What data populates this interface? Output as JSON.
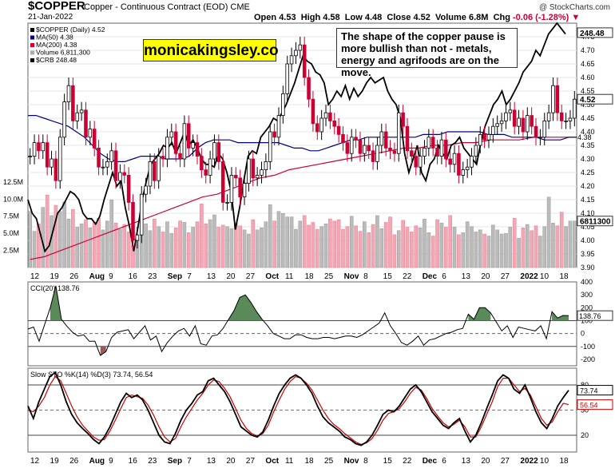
{
  "header": {
    "symbol": "$COPPER",
    "description": "Copper - Continuous Contract (EOD)",
    "exchange": "CME",
    "date": "21-Jan-2022",
    "open_label": "Open",
    "open": "4.53",
    "high_label": "High",
    "high": "4.58",
    "low_label": "Low",
    "low": "4.48",
    "close_label": "Close",
    "close": "4.52",
    "volume_label": "Volume",
    "volume": "6.8M",
    "chg_label": "Chg",
    "chg": "-0.06 (-1.28%)",
    "watermark": "@ StockCharts.com"
  },
  "annotation": "The shape of the copper pause is more bullish than not - metals, energy and agrifoods are on the move.",
  "brand_label": "monicakingsley.co",
  "chart_data": [
    {
      "type": "candlestick",
      "title": "$COPPER (Daily) 4.52",
      "legend": [
        {
          "label": "$COPPER (Daily) 4.52",
          "color": "#000000"
        },
        {
          "label": "MA(50) 4.38",
          "color": "#000080"
        },
        {
          "label": "MA(200) 4.38",
          "color": "#cc0033"
        },
        {
          "label": "Volume 6,811,300",
          "color": "#aaaaaa"
        },
        {
          "label": "$CRB 248.48",
          "color": "#000000"
        }
      ],
      "ylim": [
        3.9,
        4.8
      ],
      "y_ticks": [
        "3.90",
        "3.95",
        "4.00",
        "4.05",
        "4.10",
        "4.15",
        "4.20",
        "4.25",
        "4.30",
        "4.35",
        "4.40",
        "4.45",
        "4.50",
        "4.55",
        "4.60",
        "4.65",
        "4.70",
        "4.75"
      ],
      "volume_ticks": [
        "2.5M",
        "5.0M",
        "7.5M",
        "10.0M",
        "12.5M"
      ],
      "volume_max_m": 12.5,
      "x_labels": [
        "12",
        "19",
        "26",
        "Aug",
        "9",
        "16",
        "23",
        "Sep",
        "7",
        "13",
        "20",
        "27",
        "Oct",
        "11",
        "18",
        "25",
        "Nov",
        "8",
        "15",
        "22",
        "Dec",
        "6",
        "13",
        "20",
        "27",
        "2022",
        "10",
        "18"
      ],
      "bold_labels": [
        "Aug",
        "Sep",
        "Oct",
        "Nov",
        "Dec",
        "2022"
      ],
      "price_close": [
        4.31,
        4.36,
        4.33,
        4.36,
        4.27,
        4.3,
        4.22,
        4.38,
        4.51,
        4.57,
        4.44,
        4.47,
        4.48,
        4.38,
        4.41,
        4.34,
        4.27,
        4.27,
        4.29,
        4.33,
        4.22,
        4.25,
        4.24,
        4.14,
        4.0,
        4.02,
        4.17,
        4.2,
        4.29,
        4.22,
        4.31,
        4.3,
        4.38,
        4.4,
        4.32,
        4.3,
        4.43,
        4.34,
        4.36,
        4.31,
        4.26,
        4.24,
        4.3,
        4.36,
        4.29,
        4.14,
        4.14,
        4.24,
        4.23,
        4.16,
        4.21,
        4.3,
        4.23,
        4.24,
        4.26,
        4.29,
        4.4,
        4.38,
        4.46,
        4.54,
        4.65,
        4.68,
        4.7,
        4.72,
        4.6,
        4.52,
        4.43,
        4.4,
        4.45,
        4.47,
        4.44,
        4.42,
        4.39,
        4.36,
        4.32,
        4.38,
        4.37,
        4.32,
        4.35,
        4.33,
        4.29,
        4.35,
        4.4,
        4.34,
        4.33,
        4.32,
        4.47,
        4.42,
        4.33,
        4.31,
        4.27,
        4.31,
        4.34,
        4.38,
        4.34,
        4.31,
        4.37,
        4.3,
        4.28,
        4.32,
        4.24,
        4.26,
        4.27,
        4.31,
        4.35,
        4.39,
        4.37,
        4.39,
        4.42,
        4.43,
        4.44,
        4.47,
        4.48,
        4.42,
        4.45,
        4.4,
        4.46,
        4.42,
        4.38,
        4.38,
        4.44,
        4.47,
        4.57,
        4.47,
        4.44,
        4.44,
        4.45,
        4.52
      ],
      "crb": [
        4.15,
        4.1,
        4.08,
        4.02,
        3.96,
        3.98,
        4.04,
        4.1,
        4.12,
        4.15,
        4.18,
        4.17,
        4.15,
        4.1,
        4.08,
        4.08,
        4.06,
        4.09,
        4.15,
        4.2,
        4.25,
        4.2,
        4.22,
        4.12,
        4.05,
        3.96,
        4.05,
        4.15,
        4.22,
        4.28,
        4.3,
        4.32,
        4.35,
        4.34,
        4.36,
        4.32,
        4.36,
        4.4,
        4.35,
        4.37,
        4.34,
        4.3,
        4.28,
        4.28,
        4.27,
        4.32,
        4.3,
        4.25,
        4.18,
        4.04,
        4.12,
        4.22,
        4.31,
        4.33,
        4.32,
        4.38,
        4.4,
        4.42,
        4.45,
        4.44,
        4.47,
        4.5,
        4.54,
        4.58,
        4.63,
        4.68,
        4.66,
        4.65,
        4.62,
        4.61,
        4.58,
        4.5,
        4.52,
        4.55,
        4.53,
        4.57,
        4.52,
        4.56,
        4.53,
        4.55,
        4.58,
        4.6,
        4.58,
        4.59,
        4.6,
        4.55,
        4.52,
        4.5,
        4.45,
        4.32,
        4.25,
        4.3,
        4.35,
        4.25,
        4.22,
        4.28,
        4.3,
        4.35,
        4.32,
        4.3,
        4.35,
        4.36,
        4.38,
        4.34,
        4.32,
        4.3,
        4.28,
        4.36,
        4.42,
        4.46,
        4.5,
        4.52,
        4.55,
        4.5,
        4.52,
        4.55,
        4.58,
        4.62,
        4.64,
        4.66,
        4.7,
        4.68,
        4.72,
        4.76,
        4.78,
        4.8,
        4.78,
        4.76
      ],
      "crb_last": "248.48",
      "ma50": [
        4.46,
        4.46,
        4.45,
        4.44,
        4.43,
        4.42,
        4.4,
        4.38,
        4.35,
        4.32,
        4.3,
        4.29,
        4.29,
        4.3,
        4.31,
        4.31,
        4.31,
        4.3,
        4.3,
        4.3,
        4.31,
        4.34,
        4.36,
        4.37,
        4.37,
        4.37,
        4.36,
        4.36,
        4.36,
        4.36,
        4.36,
        4.36,
        4.35,
        4.34,
        4.34,
        4.33,
        4.33,
        4.34,
        4.35,
        4.36,
        4.37,
        4.37,
        4.38,
        4.38,
        4.38,
        4.38,
        4.38,
        4.38,
        4.38,
        4.39,
        4.39,
        4.39,
        4.4,
        4.4,
        4.4,
        4.4,
        4.4,
        4.39,
        4.39,
        4.39,
        4.38,
        4.38,
        4.38,
        4.38,
        4.37,
        4.37,
        4.37,
        4.38,
        4.38
      ],
      "ma200": [
        3.93,
        3.94,
        3.96,
        3.98,
        4.0,
        4.02,
        4.04,
        4.06,
        4.08,
        4.1,
        4.12,
        4.14,
        4.16,
        4.17,
        4.19,
        4.21,
        4.23,
        4.24,
        4.26,
        4.27,
        4.28,
        4.29,
        4.3,
        4.31,
        4.32,
        4.33,
        4.34,
        4.34,
        4.35,
        4.35,
        4.36,
        4.36,
        4.37,
        4.37,
        4.37,
        4.38,
        4.38,
        4.38,
        4.38
      ],
      "volume_m": [
        8.2,
        5.3,
        6.4,
        8.8,
        10.6,
        7.6,
        9.1,
        8.2,
        9.6,
        7.1,
        8.5,
        5.9,
        6.4,
        7.0,
        5.8,
        6.6,
        7.2,
        5.5,
        6.8,
        9.9,
        6.5,
        5.6,
        6.3,
        5.2,
        3.2,
        4.4,
        5.9,
        6.4,
        5.4,
        7.1,
        6.0,
        5.2,
        6.7,
        5.0,
        5.8,
        6.8,
        6.6,
        5.1,
        5.9,
        6.7,
        9.3,
        6.4,
        7.0,
        7.7,
        5.9,
        6.2,
        6.0,
        5.7,
        6.5,
        6.1,
        5.5,
        4.9,
        7.0,
        5.5,
        5.8,
        6.7,
        9.2,
        6.8,
        8.2,
        7.9,
        7.4,
        7.4,
        5.6,
        6.8,
        7.6,
        6.2,
        6.6,
        5.6,
        6.0,
        6.4,
        7.1,
        6.8,
        7.0,
        5.6,
        6.0,
        7.5,
        6.1,
        5.3,
        6.7,
        5.1,
        6.3,
        7.6,
        5.7,
        6.6,
        7.4,
        4.8,
        5.4,
        6.9,
        5.9,
        5.2,
        6.1,
        5.8,
        7.1,
        5.1,
        4.6,
        7.0,
        6.5,
        5.9,
        7.6,
        5.9,
        4.8,
        5.1,
        6.7,
        6.0,
        5.2,
        5.5,
        4.9,
        4.6,
        6.2,
        5.5,
        4.9,
        5.0,
        5.9,
        7.2,
        4.3,
        5.8,
        6.3,
        5.4,
        6.1,
        4.6,
        6.0,
        10.3,
        6.5,
        6.1,
        8.1,
        6.0,
        6.8,
        6.8
      ],
      "volume_last": "6811300"
    },
    {
      "type": "line",
      "title": "CCI(20) 138.76",
      "ylim": [
        -250,
        400
      ],
      "y_ticks": [
        "-200",
        "-100",
        "0",
        "100",
        "200",
        "300",
        "400"
      ],
      "last": "138.76",
      "values": [
        35,
        50,
        -60,
        70,
        200,
        370,
        110,
        55,
        10,
        -20,
        -10,
        -60,
        -60,
        -170,
        -140,
        -30,
        10,
        20,
        30,
        -40,
        10,
        60,
        -50,
        -20,
        -140,
        -70,
        -20,
        20,
        40,
        -20,
        60,
        -80,
        -90,
        -20,
        -10,
        40,
        110,
        180,
        280,
        300,
        240,
        170,
        110,
        60,
        0,
        -20,
        -40,
        -40,
        -10,
        -10,
        -30,
        -40,
        -40,
        -30,
        -30,
        -40,
        -30,
        -20,
        -20,
        -30,
        -10,
        20,
        50,
        80,
        160,
        60,
        0,
        -70,
        -90,
        -60,
        -20,
        -90,
        -50,
        -40,
        -20,
        0,
        10,
        30,
        40,
        150,
        110,
        200,
        200,
        160,
        90,
        20,
        60,
        -30,
        50,
        40,
        30,
        20,
        60,
        -40,
        170,
        120,
        140,
        138.76
      ]
    },
    {
      "type": "line",
      "title": "Slow STO %K(14) %D(3) 73.74, 56.54",
      "series": [
        {
          "name": "%K(14)",
          "color": "#000000",
          "last": "73.74",
          "values": [
            55,
            40,
            60,
            75,
            90,
            95,
            80,
            60,
            45,
            35,
            28,
            22,
            15,
            10,
            18,
            30,
            45,
            60,
            70,
            65,
            68,
            62,
            50,
            35,
            20,
            12,
            10,
            22,
            38,
            50,
            58,
            68,
            72,
            85,
            88,
            80,
            72,
            60,
            45,
            30,
            25,
            20,
            18,
            24,
            38,
            55,
            70,
            80,
            88,
            92,
            88,
            80,
            70,
            55,
            42,
            35,
            30,
            25,
            18,
            15,
            10,
            8,
            12,
            20,
            32,
            45,
            50,
            48,
            55,
            65,
            75,
            80,
            72,
            60,
            48,
            40,
            32,
            28,
            35,
            40,
            25,
            12,
            20,
            35,
            52,
            68,
            85,
            92,
            88,
            75,
            70,
            80,
            65,
            48,
            35,
            28,
            40,
            55,
            65,
            73.74
          ]
        },
        {
          "name": "%D(3)",
          "color": "#cc0000",
          "last": "56.54",
          "values": [
            50,
            48,
            55,
            65,
            80,
            90,
            85,
            70,
            55,
            42,
            32,
            25,
            18,
            14,
            15,
            25,
            38,
            52,
            65,
            68,
            66,
            64,
            56,
            44,
            30,
            18,
            12,
            16,
            30,
            42,
            52,
            62,
            70,
            80,
            86,
            84,
            76,
            66,
            52,
            38,
            28,
            22,
            19,
            22,
            32,
            48,
            62,
            75,
            84,
            90,
            88,
            82,
            74,
            62,
            50,
            40,
            33,
            28,
            22,
            17,
            12,
            9,
            11,
            16,
            26,
            38,
            46,
            48,
            52,
            60,
            70,
            77,
            74,
            64,
            52,
            43,
            35,
            30,
            33,
            38,
            30,
            18,
            18,
            30,
            45,
            60,
            78,
            88,
            88,
            80,
            72,
            76,
            68,
            54,
            40,
            32,
            36,
            48,
            58,
            56.54
          ]
        }
      ],
      "ylim": [
        0,
        100
      ],
      "y_ticks": [
        "20",
        "50",
        "80"
      ]
    }
  ]
}
